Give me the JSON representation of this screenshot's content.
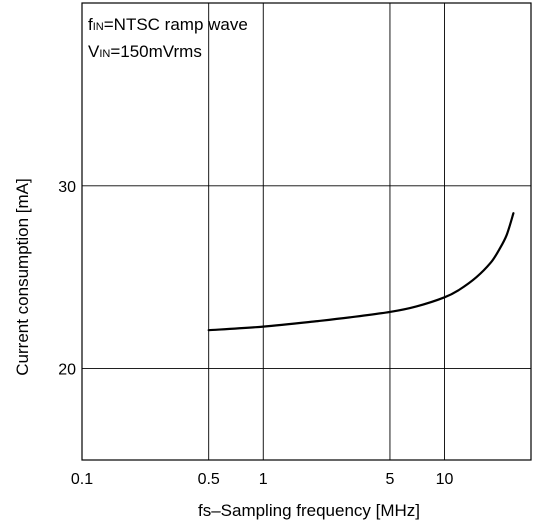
{
  "chart_data": {
    "type": "line",
    "xscale": "log",
    "xlim": [
      0.1,
      30
    ],
    "ylim": [
      15,
      40
    ],
    "xticks": [
      0.1,
      0.5,
      1,
      5,
      10
    ],
    "xtick_labels": [
      "0.1",
      "0.5",
      "1",
      "5",
      "10"
    ],
    "yticks": [
      20,
      30
    ],
    "ytick_labels": [
      "20",
      "30"
    ],
    "xlabel": "fs–Sampling frequency [MHz]",
    "ylabel": "Current consumption [mA]",
    "grid": true,
    "annotations": {
      "line1_prefix": "f",
      "line1_sub": "IN",
      "line1_rest": "=NTSC ramp wave",
      "line2_prefix": "V",
      "line2_sub": "IN",
      "line2_rest": "=150mVrms"
    },
    "series": [
      {
        "x": [
          0.5,
          1,
          2,
          3,
          5,
          7,
          10,
          12,
          15,
          18,
          20,
          22,
          24
        ],
        "y": [
          22.1,
          22.3,
          22.6,
          22.8,
          23.1,
          23.4,
          23.9,
          24.3,
          25.0,
          25.8,
          26.5,
          27.3,
          28.5
        ]
      }
    ]
  }
}
